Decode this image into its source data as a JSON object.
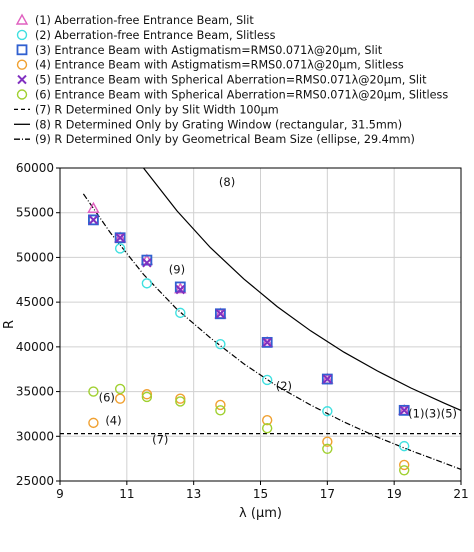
{
  "chart_data": {
    "type": "scatter",
    "xlabel": "λ (μm)",
    "ylabel": "R",
    "xlim": [
      9,
      21
    ],
    "ylim": [
      25000,
      60000
    ],
    "x_ticks": [
      9,
      11,
      13,
      15,
      17,
      19,
      21
    ],
    "y_ticks": [
      25000,
      30000,
      35000,
      40000,
      45000,
      50000,
      55000,
      60000
    ],
    "grid": true,
    "legend_position": "top, above plot",
    "legend": [
      "(1) Aberration-free Entrance Beam, Slit",
      "(2) Aberration-free Entrance Beam, Slitless",
      "(3) Entrance Beam with Astigmatism=RMS0.071λ@20μm, Slit",
      "(4) Entrance Beam with Astigmatism=RMS0.071λ@20μm, Slitless",
      "(5) Entrance Beam with Spherical Aberration=RMS0.071λ@20μm, Slit",
      "(6) Entrance Beam with Spherical Aberration=RMS0.071λ@20μm, Slitless",
      "(7) R Determined Only by Slit Width 100μm",
      "(8) R Determined Only by Grating Window (rectangular, 31.5mm)",
      "(9) R Determined Only by Geometrical Beam Size (ellipse, 29.4mm)"
    ],
    "series": [
      {
        "name": "(1) Aberration-free Entrance Beam, Slit",
        "marker": "triangle",
        "color": "#e060c0",
        "x": [
          10.0,
          10.8,
          11.6,
          12.6,
          13.8,
          15.2,
          17.0,
          19.3
        ],
        "y": [
          55500,
          52200,
          49700,
          46500,
          43700,
          40500,
          36400,
          32900
        ]
      },
      {
        "name": "(2) Aberration-free Entrance Beam, Slitless",
        "marker": "circle",
        "color": "#40e0e0",
        "x": [
          10.0,
          10.8,
          11.6,
          12.6,
          13.8,
          15.2,
          17.0,
          19.3
        ],
        "y": [
          54200,
          51000,
          47100,
          43800,
          40300,
          36300,
          32800,
          28900
        ]
      },
      {
        "name": "(3) Entrance Beam with Astigmatism=RMS0.071λ@20μm, Slit",
        "marker": "square",
        "color": "#3060d0",
        "x": [
          10.0,
          10.8,
          11.6,
          12.6,
          13.8,
          15.2,
          17.0,
          19.3
        ],
        "y": [
          54200,
          52200,
          49700,
          46700,
          43700,
          40500,
          36400,
          32900
        ]
      },
      {
        "name": "(4) Entrance Beam with Astigmatism=RMS0.071λ@20μm, Slitless",
        "marker": "circle",
        "color": "#f0a030",
        "x": [
          10.0,
          10.8,
          11.6,
          12.6,
          13.8,
          15.2,
          17.0,
          19.3
        ],
        "y": [
          31500,
          34200,
          34700,
          34200,
          33500,
          31800,
          29400,
          26800
        ]
      },
      {
        "name": "(5) Entrance Beam with Spherical Aberration=RMS0.071λ@20μm, Slit",
        "marker": "x",
        "color": "#8030c0",
        "x": [
          10.0,
          10.8,
          11.6,
          12.6,
          13.8,
          15.2,
          17.0,
          19.3
        ],
        "y": [
          54200,
          52200,
          49400,
          46400,
          43700,
          40500,
          36400,
          32900
        ]
      },
      {
        "name": "(6) Entrance Beam with Spherical Aberration=RMS0.071λ@20μm, Slitless",
        "marker": "circle",
        "color": "#a0d030",
        "x": [
          10.0,
          10.8,
          11.6,
          12.6,
          13.8,
          15.2,
          17.0,
          19.3
        ],
        "y": [
          35000,
          35300,
          34400,
          33900,
          32900,
          30900,
          28600,
          26200
        ]
      },
      {
        "name": "(7) R Determined Only by Slit Width 100μm",
        "style": "dashed",
        "color": "#000000",
        "x": [
          9,
          21
        ],
        "y": [
          30300,
          30300
        ]
      },
      {
        "name": "(8) R Determined Only by Grating Window (rectangular, 31.5mm)",
        "style": "solid",
        "color": "#000000",
        "x": [
          11.5,
          12.5,
          13.5,
          14.5,
          15.5,
          16.5,
          17.5,
          18.5,
          19.5,
          20.5,
          21
        ],
        "y": [
          60000,
          55200,
          51100,
          47600,
          44500,
          41800,
          39400,
          37300,
          35400,
          33700,
          32900
        ]
      },
      {
        "name": "(9) R Determined Only by Geometrical Beam Size (ellipse, 29.4mm)",
        "style": "dashdot",
        "color": "#000000",
        "x": [
          9.7,
          10.5,
          11.5,
          12.5,
          13.5,
          14.5,
          15.5,
          16.5,
          17.5,
          18.5,
          19.5,
          20.5,
          21
        ],
        "y": [
          57100,
          52800,
          48100,
          44200,
          41000,
          38100,
          35600,
          33500,
          31600,
          29900,
          28400,
          27000,
          26300
        ]
      }
    ],
    "annotations": [
      {
        "text": "(8)",
        "x": 14.0,
        "y": 58000
      },
      {
        "text": "(9)",
        "x": 12.5,
        "y": 48200
      },
      {
        "text": "(2)",
        "x": 15.7,
        "y": 35200
      },
      {
        "text": "(6)",
        "x": 10.4,
        "y": 33900
      },
      {
        "text": "(4)",
        "x": 10.6,
        "y": 31300
      },
      {
        "text": "(7)",
        "x": 12.0,
        "y": 29200
      },
      {
        "text": "(1)(3)(5)",
        "x": 20.15,
        "y": 32100
      }
    ]
  }
}
